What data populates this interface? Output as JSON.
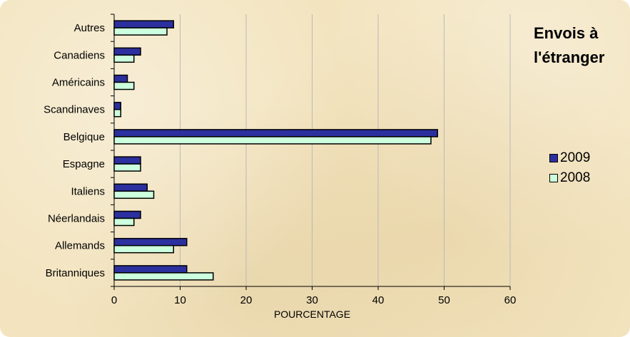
{
  "chart_data": {
    "type": "bar",
    "orientation": "horizontal",
    "title": "Envois à l'étranger",
    "title_lines": [
      "Envois à",
      "l'étranger"
    ],
    "xlabel": "POURCENTAGE",
    "ylabel": "",
    "xlim": [
      0,
      60
    ],
    "xticks": [
      "0",
      "10",
      "20",
      "30",
      "40",
      "50",
      "60"
    ],
    "grid": "vertical",
    "legend_position": "right",
    "categories": [
      "Autres",
      "Canadiens",
      "Américains",
      "Scandinaves",
      "Belgique",
      "Espagne",
      "Italiens",
      "Néerlandais",
      "Allemands",
      "Britanniques"
    ],
    "series": [
      {
        "name": "2009",
        "color": "#2c2f9e",
        "values": [
          9,
          4,
          2,
          1,
          49,
          4,
          5,
          4,
          11,
          11
        ]
      },
      {
        "name": "2008",
        "color": "#ccffdd",
        "values": [
          8,
          3,
          3,
          1,
          48,
          4,
          6,
          3,
          9,
          15
        ]
      }
    ]
  }
}
